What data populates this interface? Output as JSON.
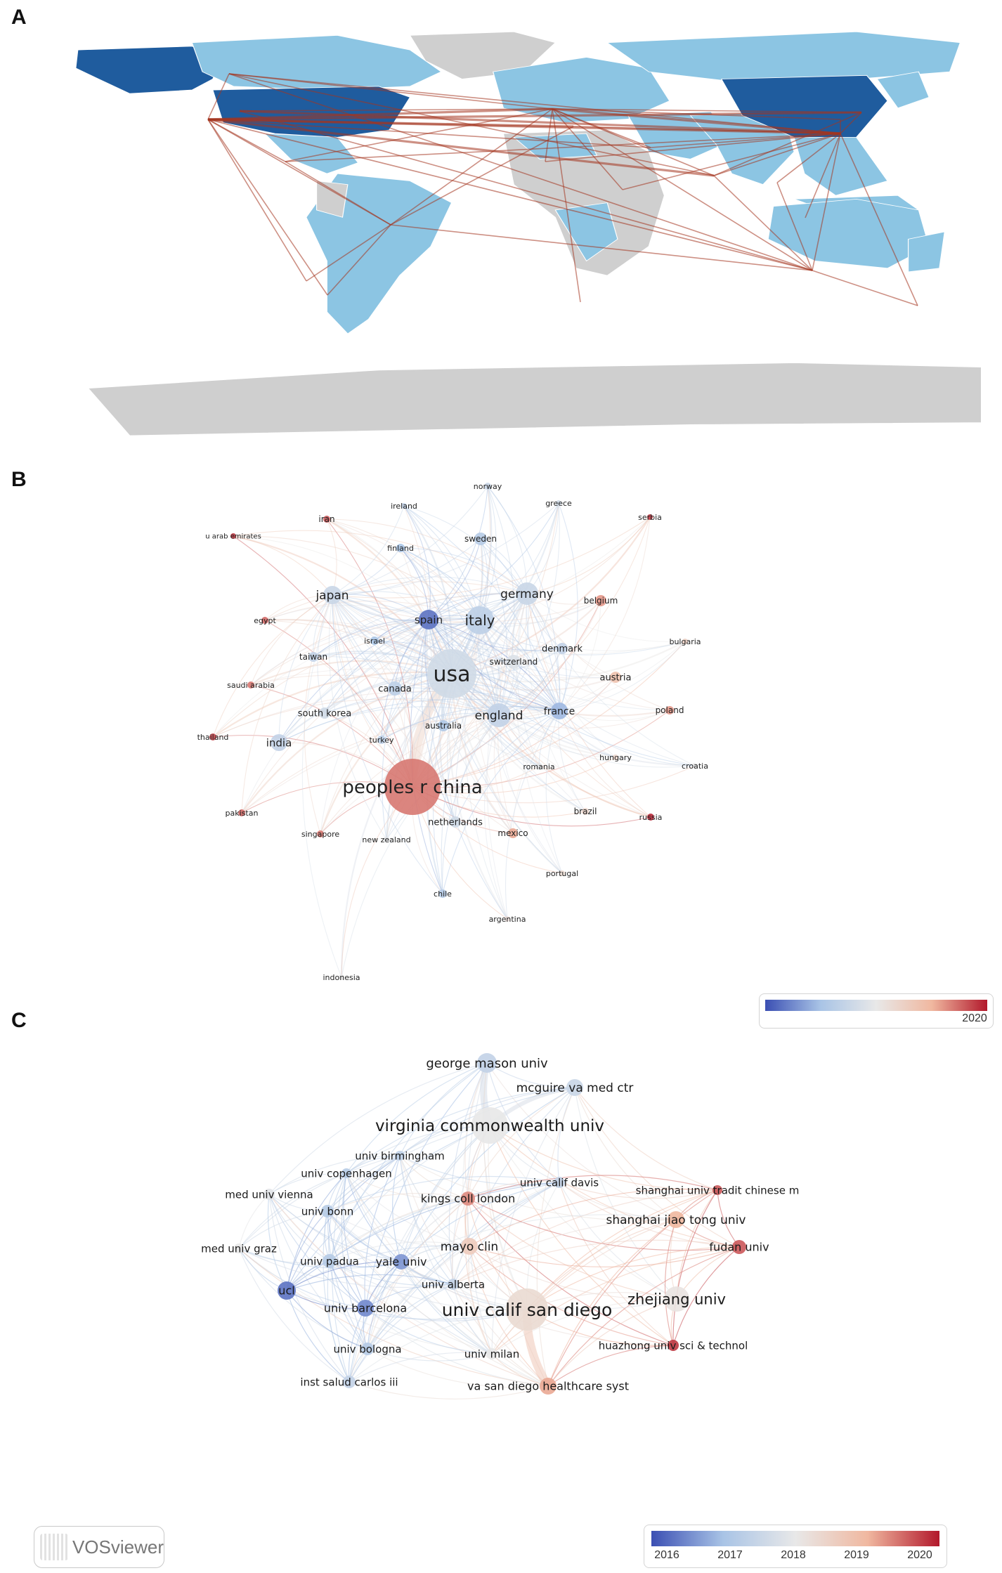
{
  "panels": {
    "a": "A",
    "b": "B",
    "c": "C"
  },
  "colors": {
    "map_high": "#1f5c9e",
    "map_mid": "#8cc5e3",
    "map_none": "#cfcfcf",
    "map_link": "#a4341f",
    "scale_low": "#3b4fb3",
    "scale_mid": "#e8e8e8",
    "scale_high": "#b2182b"
  },
  "vosviewer_label": "VOSviewer",
  "chart_data": [
    {
      "type": "map",
      "description_level": "country collaboration world map",
      "countries_high": [
        "USA",
        "China"
      ],
      "countries_active": [
        "Canada",
        "Greenland",
        "Brazil",
        "Argentina",
        "Chile",
        "Mexico",
        "Europe",
        "India",
        "Japan",
        "Australia",
        "Saudi Arabia",
        "Egypt",
        "Iran",
        "Turkey",
        "South Africa",
        "Nigeria",
        "Kenya",
        "Indonesia",
        "Pakistan",
        "Thailand",
        "New Zealand",
        "Russia"
      ]
    },
    {
      "type": "network",
      "legend": {
        "max_label": "2020"
      },
      "nodes": [
        {
          "label": "norway",
          "year": 2017.5
        },
        {
          "label": "greece",
          "year": 2017.6
        },
        {
          "label": "ireland",
          "year": 2017.4
        },
        {
          "label": "serbia",
          "year": 2019.8
        },
        {
          "label": "iran",
          "year": 2019.6
        },
        {
          "label": "u arab emirates",
          "year": 2019.8
        },
        {
          "label": "sweden",
          "year": 2017.2
        },
        {
          "label": "finland",
          "year": 2017.0
        },
        {
          "label": "japan",
          "year": 2017.5
        },
        {
          "label": "germany",
          "year": 2017.5
        },
        {
          "label": "belgium",
          "year": 2019.2
        },
        {
          "label": "egypt",
          "year": 2019.5
        },
        {
          "label": "spain",
          "year": 2016.3
        },
        {
          "label": "italy",
          "year": 2017.3
        },
        {
          "label": "bulgaria",
          "year": 2018.5
        },
        {
          "label": "israel",
          "year": 2017.0
        },
        {
          "label": "denmark",
          "year": 2017.4
        },
        {
          "label": "taiwan",
          "year": 2017.4
        },
        {
          "label": "switzerland",
          "year": 2017.8
        },
        {
          "label": "usa",
          "year": 2017.6
        },
        {
          "label": "austria",
          "year": 2018.8
        },
        {
          "label": "saudi arabia",
          "year": 2019.4
        },
        {
          "label": "canada",
          "year": 2017.3
        },
        {
          "label": "poland",
          "year": 2019.2
        },
        {
          "label": "south korea",
          "year": 2017.6
        },
        {
          "label": "england",
          "year": 2017.4
        },
        {
          "label": "france",
          "year": 2016.9
        },
        {
          "label": "australia",
          "year": 2017.1
        },
        {
          "label": "thailand",
          "year": 2019.7
        },
        {
          "label": "india",
          "year": 2017.4
        },
        {
          "label": "turkey",
          "year": 2017.3
        },
        {
          "label": "hungary",
          "year": 2018.4
        },
        {
          "label": "croatia",
          "year": 2018.0
        },
        {
          "label": "romania",
          "year": 2017.9
        },
        {
          "label": "peoples r china",
          "year": 2019.4
        },
        {
          "label": "pakistan",
          "year": 2019.5
        },
        {
          "label": "brazil",
          "year": 2018.4
        },
        {
          "label": "netherlands",
          "year": 2017.6
        },
        {
          "label": "russia",
          "year": 2019.9
        },
        {
          "label": "mexico",
          "year": 2019.1
        },
        {
          "label": "singapore",
          "year": 2019.4
        },
        {
          "label": "new zealand",
          "year": 2017.9
        },
        {
          "label": "portugal",
          "year": 2018.3
        },
        {
          "label": "chile",
          "year": 2017.2
        },
        {
          "label": "argentina",
          "year": 2018.2
        },
        {
          "label": "indonesia",
          "year": 2018.0
        }
      ]
    },
    {
      "type": "network",
      "legend": {
        "ticks": [
          "2016",
          "2017",
          "2018",
          "2019",
          "2020"
        ]
      },
      "nodes": [
        {
          "label": "george mason univ",
          "year": 2017.4
        },
        {
          "label": "mcguire va med ctr",
          "year": 2017.5
        },
        {
          "label": "virginia commonwealth univ",
          "year": 2018.0
        },
        {
          "label": "univ birmingham",
          "year": 2017.3
        },
        {
          "label": "univ copenhagen",
          "year": 2017.2
        },
        {
          "label": "univ calif davis",
          "year": 2017.4
        },
        {
          "label": "shanghai univ tradit chinese m",
          "year": 2019.6
        },
        {
          "label": "med univ vienna",
          "year": 2017.9
        },
        {
          "label": "kings coll london",
          "year": 2019.3
        },
        {
          "label": "univ bonn",
          "year": 2017.2
        },
        {
          "label": "shanghai jiao tong univ",
          "year": 2019.0
        },
        {
          "label": "mayo clin",
          "year": 2018.6
        },
        {
          "label": "fudan univ",
          "year": 2019.6
        },
        {
          "label": "med univ graz",
          "year": 2018.0
        },
        {
          "label": "univ padua",
          "year": 2017.2
        },
        {
          "label": "yale univ",
          "year": 2016.6
        },
        {
          "label": "univ alberta",
          "year": 2017.4
        },
        {
          "label": "ucl",
          "year": 2016.3
        },
        {
          "label": "zhejiang univ",
          "year": 2018.1
        },
        {
          "label": "univ barcelona",
          "year": 2016.5
        },
        {
          "label": "univ calif san diego",
          "year": 2018.3
        },
        {
          "label": "univ bologna",
          "year": 2017.2
        },
        {
          "label": "univ milan",
          "year": 2018.0
        },
        {
          "label": "huazhong univ sci & technol",
          "year": 2019.8
        },
        {
          "label": "inst salud carlos iii",
          "year": 2017.4
        },
        {
          "label": "va san diego healthcare syst",
          "year": 2019.1
        }
      ]
    }
  ]
}
